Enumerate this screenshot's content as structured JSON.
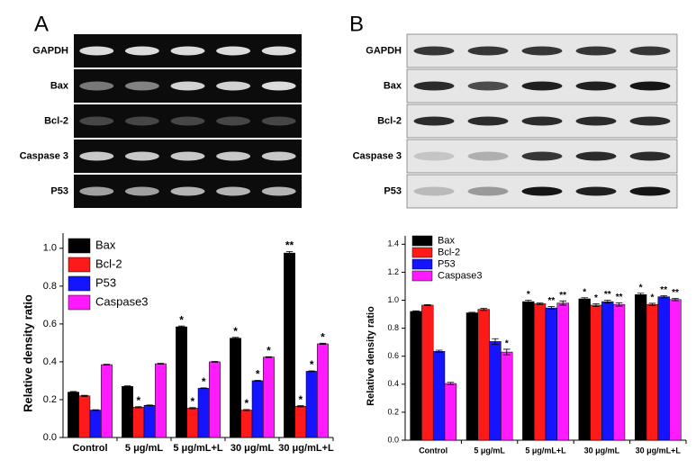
{
  "panel_labels": [
    "A",
    "B"
  ],
  "gels": [
    {
      "rows": [
        "GAPDH",
        "Bax",
        "Bcl-2",
        "Caspase 3",
        "P53"
      ]
    },
    {
      "rows": [
        "GAPDH",
        "Bax",
        "Bcl-2",
        "Caspase 3",
        "P53"
      ]
    }
  ],
  "chart_data": [
    {
      "type": "bar",
      "ylabel": "Relative density ratio",
      "categories": [
        "Control",
        "5 μg/mL",
        "5 μg/mL+L",
        "30 μg/mL",
        "30 μg/mL+L"
      ],
      "ylim": [
        0,
        1.08
      ],
      "yticks": [
        {
          "value": 0,
          "label": "0.0"
        },
        0.2,
        0.4,
        0.6,
        0.8,
        {
          "value": 1,
          "label": "1.0"
        }
      ],
      "legend": "upper-left",
      "series": [
        {
          "name": "Bax",
          "color": "#000000",
          "values": [
            0.24,
            0.27,
            0.585,
            0.525,
            0.975
          ],
          "errors": [
            0.003,
            0.003,
            0.004,
            0.004,
            0.008
          ],
          "annotations": [
            null,
            null,
            "*",
            "*",
            "**"
          ]
        },
        {
          "name": "Bcl-2",
          "color": "#ff1a1a",
          "values": [
            0.22,
            0.16,
            0.155,
            0.145,
            0.165
          ],
          "errors": [
            0.003,
            0.003,
            0.003,
            0.003,
            0.003
          ],
          "annotations": [
            null,
            "*",
            "*",
            "*",
            "*"
          ]
        },
        {
          "name": "P53",
          "color": "#1414ff",
          "values": [
            0.145,
            0.17,
            0.26,
            0.3,
            0.35
          ],
          "errors": [
            0.002,
            0.002,
            0.002,
            0.002,
            0.002
          ],
          "annotations": [
            null,
            null,
            "*",
            "*",
            "*"
          ]
        },
        {
          "name": "Caspase3",
          "color": "#ff1aff",
          "values": [
            0.385,
            0.39,
            0.4,
            0.425,
            0.495
          ],
          "errors": [
            0.002,
            0.002,
            0.002,
            0.002,
            0.003
          ],
          "annotations": [
            null,
            null,
            null,
            "*",
            "*"
          ]
        }
      ]
    },
    {
      "type": "bar",
      "ylabel": "Relative density ratio",
      "categories": [
        "Control",
        "5 μg/mL",
        "5 μg/mL+L",
        "30 μg/mL",
        "30 μg/mL+L"
      ],
      "ylim": [
        0,
        1.46
      ],
      "yticks": [
        {
          "value": 0,
          "label": "0.0"
        },
        0.2,
        0.4,
        0.6,
        0.8,
        {
          "value": 1,
          "label": "1.0"
        },
        1.2,
        1.4
      ],
      "legend": "upper-left",
      "series": [
        {
          "name": "Bax",
          "color": "#000000",
          "values": [
            0.92,
            0.91,
            0.99,
            1.01,
            1.04
          ],
          "errors": [
            0.004,
            0.004,
            0.01,
            0.008,
            0.01
          ],
          "annotations": [
            null,
            null,
            "*",
            "*",
            "*"
          ]
        },
        {
          "name": "Bcl-2",
          "color": "#ff1a1a",
          "values": [
            0.965,
            0.935,
            0.975,
            0.965,
            0.97
          ],
          "errors": [
            0.004,
            0.008,
            0.006,
            0.01,
            0.008
          ],
          "annotations": [
            null,
            null,
            null,
            "*",
            "*"
          ]
        },
        {
          "name": "P53",
          "color": "#1414ff",
          "values": [
            0.635,
            0.705,
            0.945,
            0.99,
            1.025
          ],
          "errors": [
            0.008,
            0.02,
            0.01,
            0.01,
            0.008
          ],
          "annotations": [
            null,
            null,
            "**",
            "**",
            "**"
          ]
        },
        {
          "name": "Caspase3",
          "color": "#ff1aff",
          "values": [
            0.405,
            0.63,
            0.98,
            0.97,
            1.005
          ],
          "errors": [
            0.008,
            0.02,
            0.015,
            0.012,
            0.008
          ],
          "annotations": [
            null,
            "*",
            "**",
            "**",
            "**"
          ]
        }
      ]
    }
  ]
}
